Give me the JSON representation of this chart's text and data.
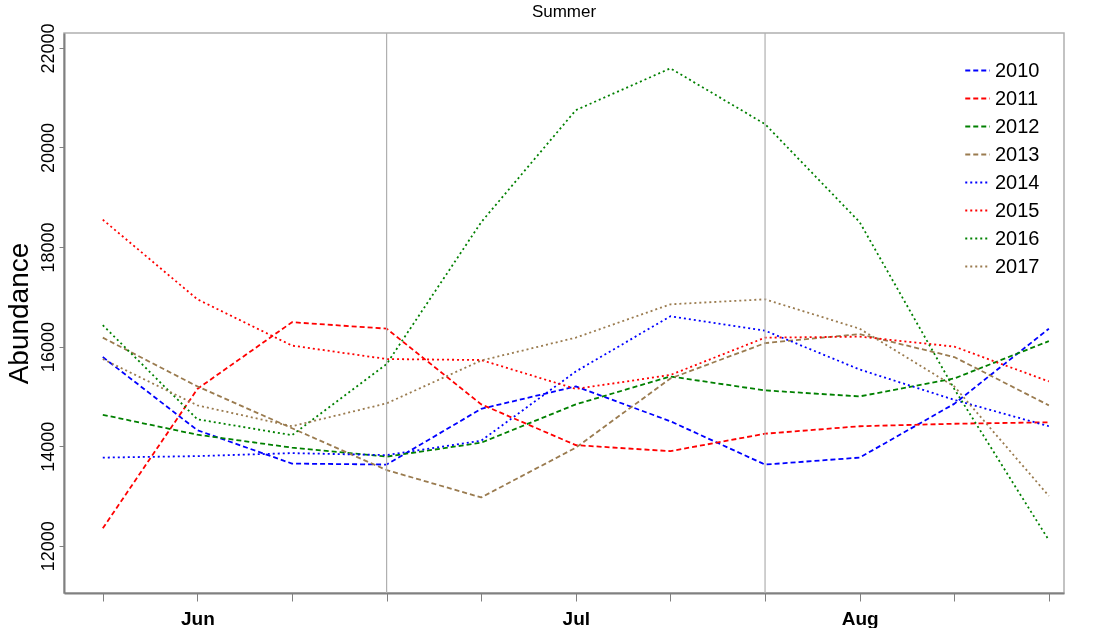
{
  "chart_data": {
    "type": "line",
    "title": "Summer",
    "ylabel": "Abundance",
    "categories": [
      null,
      "Jun",
      null,
      null,
      null,
      "Jul",
      null,
      null,
      "Aug",
      null,
      null
    ],
    "ylim": [
      11050,
      22300
    ],
    "yticks": [
      12000,
      14000,
      16000,
      18000,
      20000,
      22000
    ],
    "grid": "x",
    "legend": "top right",
    "marker": "none",
    "series": [
      {
        "name": "2010",
        "color": "#0000ff",
        "line_style": "dashed",
        "values": [
          15790,
          14320,
          13650,
          13630,
          14750,
          15200,
          14500,
          13630,
          13770,
          14850,
          16360
        ]
      },
      {
        "name": "2011",
        "color": "#ff0000",
        "line_style": "dashed",
        "values": [
          12350,
          15150,
          16490,
          16360,
          14840,
          14020,
          13900,
          14250,
          14400,
          14450,
          14480
        ]
      },
      {
        "name": "2012",
        "color": "#008000",
        "line_style": "dashed",
        "values": [
          14630,
          14230,
          13970,
          13790,
          14070,
          14840,
          15400,
          15120,
          15000,
          15360,
          16110
        ]
      },
      {
        "name": "2013",
        "color": "#9a7b4f",
        "line_style": "dashed",
        "values": [
          16180,
          15200,
          14360,
          13520,
          12970,
          13970,
          15360,
          16070,
          16250,
          15790,
          14820
        ]
      },
      {
        "name": "2014",
        "color": "#0000ff",
        "line_style": "dotted",
        "values": [
          13770,
          13800,
          13860,
          13820,
          14110,
          15500,
          16610,
          16320,
          15540,
          14930,
          14400
        ]
      },
      {
        "name": "2015",
        "color": "#ff0000",
        "line_style": "dotted",
        "values": [
          18550,
          16950,
          16020,
          15750,
          15730,
          15150,
          15430,
          16180,
          16200,
          16000,
          15300
        ]
      },
      {
        "name": "2016",
        "color": "#008000",
        "line_style": "dotted",
        "values": [
          16430,
          14540,
          14220,
          15650,
          18500,
          20750,
          21590,
          20470,
          18500,
          15150,
          12110
        ]
      },
      {
        "name": "2017",
        "color": "#9a7b4f",
        "line_style": "dotted",
        "values": [
          15750,
          14820,
          14400,
          14860,
          15720,
          16180,
          16850,
          16950,
          16360,
          15200,
          13000
        ]
      }
    ]
  }
}
